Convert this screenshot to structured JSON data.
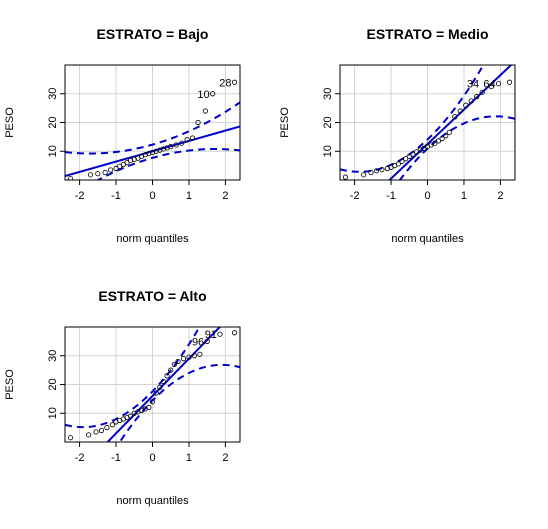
{
  "chart_data": [
    {
      "type": "scatter",
      "title": "ESTRATO = Bajo",
      "xlabel": "norm quantiles",
      "ylabel": "PESO",
      "xlim": [
        -2.4,
        2.4
      ],
      "ylim": [
        0,
        40
      ],
      "xticks": [
        -2,
        -1,
        0,
        1,
        2
      ],
      "yticks": [
        10,
        20,
        30
      ],
      "grid": true,
      "points": [
        {
          "x": -2.25,
          "y": 0.5
        },
        {
          "x": -1.7,
          "y": 1.8
        },
        {
          "x": -1.5,
          "y": 2.2
        },
        {
          "x": -1.3,
          "y": 2.6
        },
        {
          "x": -1.15,
          "y": 3.5
        },
        {
          "x": -1.0,
          "y": 4.0
        },
        {
          "x": -0.9,
          "y": 4.8
        },
        {
          "x": -0.8,
          "y": 5.4
        },
        {
          "x": -0.7,
          "y": 6.0
        },
        {
          "x": -0.6,
          "y": 6.8
        },
        {
          "x": -0.5,
          "y": 7.2
        },
        {
          "x": -0.4,
          "y": 7.6
        },
        {
          "x": -0.3,
          "y": 8.2
        },
        {
          "x": -0.2,
          "y": 8.8
        },
        {
          "x": -0.1,
          "y": 9.2
        },
        {
          "x": 0.0,
          "y": 9.6
        },
        {
          "x": 0.1,
          "y": 10.0
        },
        {
          "x": 0.2,
          "y": 10.4
        },
        {
          "x": 0.3,
          "y": 10.8
        },
        {
          "x": 0.4,
          "y": 11.2
        },
        {
          "x": 0.5,
          "y": 11.6
        },
        {
          "x": 0.65,
          "y": 12.2
        },
        {
          "x": 0.8,
          "y": 12.8
        },
        {
          "x": 0.95,
          "y": 14.0
        },
        {
          "x": 1.1,
          "y": 14.6
        },
        {
          "x": 1.25,
          "y": 20.0
        },
        {
          "x": 1.45,
          "y": 24.0
        },
        {
          "x": 1.65,
          "y": 30.0
        },
        {
          "x": 2.25,
          "y": 34.0
        }
      ],
      "point_labels": [
        {
          "x": 1.65,
          "y": 30.0,
          "text": "10"
        },
        {
          "x": 2.25,
          "y": 34.0,
          "text": "28"
        }
      ],
      "reference_line": {
        "intercept": 10.0,
        "slope": 3.6
      },
      "envelope": {
        "center": 10.0,
        "slope": 3.6,
        "base": 2.3,
        "spread": 1.05
      }
    },
    {
      "type": "scatter",
      "title": "ESTRATO = Medio",
      "xlabel": "norm quantiles",
      "ylabel": "PESO",
      "xlim": [
        -2.4,
        2.4
      ],
      "ylim": [
        0,
        40
      ],
      "xticks": [
        -2,
        -1,
        0,
        1,
        2
      ],
      "yticks": [
        10,
        20,
        30
      ],
      "grid": true,
      "points": [
        {
          "x": -2.25,
          "y": 1.0
        },
        {
          "x": -1.75,
          "y": 1.8
        },
        {
          "x": -1.55,
          "y": 2.6
        },
        {
          "x": -1.4,
          "y": 3.2
        },
        {
          "x": -1.25,
          "y": 3.6
        },
        {
          "x": -1.1,
          "y": 4.0
        },
        {
          "x": -1.0,
          "y": 4.4
        },
        {
          "x": -0.9,
          "y": 5.0
        },
        {
          "x": -0.8,
          "y": 5.6
        },
        {
          "x": -0.7,
          "y": 6.5
        },
        {
          "x": -0.6,
          "y": 7.4
        },
        {
          "x": -0.5,
          "y": 8.2
        },
        {
          "x": -0.4,
          "y": 9.0
        },
        {
          "x": -0.3,
          "y": 9.8
        },
        {
          "x": -0.2,
          "y": 10.4
        },
        {
          "x": -0.1,
          "y": 11.0
        },
        {
          "x": 0.0,
          "y": 11.6
        },
        {
          "x": 0.1,
          "y": 12.2
        },
        {
          "x": 0.2,
          "y": 12.8
        },
        {
          "x": 0.3,
          "y": 13.6
        },
        {
          "x": 0.4,
          "y": 14.4
        },
        {
          "x": 0.5,
          "y": 15.4
        },
        {
          "x": 0.6,
          "y": 16.6
        },
        {
          "x": 0.75,
          "y": 22.0
        },
        {
          "x": 0.9,
          "y": 24.0
        },
        {
          "x": 1.05,
          "y": 26.0
        },
        {
          "x": 1.2,
          "y": 27.5
        },
        {
          "x": 1.35,
          "y": 29.0
        },
        {
          "x": 1.5,
          "y": 30.5
        },
        {
          "x": 1.75,
          "y": 32.5
        },
        {
          "x": 1.95,
          "y": 33.5
        },
        {
          "x": 2.25,
          "y": 34.0
        }
      ],
      "point_labels": [
        {
          "x": 1.5,
          "y": 33.5,
          "text": "34"
        },
        {
          "x": 1.95,
          "y": 33.5,
          "text": "64"
        }
      ],
      "reference_line": {
        "intercept": 12.5,
        "slope": 12.0
      },
      "envelope": {
        "center": 12.5,
        "slope": 12.0,
        "base": 1.6,
        "spread": 3.2
      }
    },
    {
      "type": "scatter",
      "title": "ESTRATO = Alto",
      "xlabel": "norm quantiles",
      "ylabel": "PESO",
      "xlim": [
        -2.4,
        2.4
      ],
      "ylim": [
        0,
        40
      ],
      "xticks": [
        -2,
        -1,
        0,
        1,
        2
      ],
      "yticks": [
        10,
        20,
        30
      ],
      "grid": true,
      "points": [
        {
          "x": -2.25,
          "y": 1.5
        },
        {
          "x": -1.75,
          "y": 2.5
        },
        {
          "x": -1.55,
          "y": 3.5
        },
        {
          "x": -1.4,
          "y": 4.0
        },
        {
          "x": -1.25,
          "y": 5.0
        },
        {
          "x": -1.1,
          "y": 6.0
        },
        {
          "x": -1.0,
          "y": 7.0
        },
        {
          "x": -0.9,
          "y": 7.5
        },
        {
          "x": -0.8,
          "y": 8.0
        },
        {
          "x": -0.7,
          "y": 8.5
        },
        {
          "x": -0.6,
          "y": 9.0
        },
        {
          "x": -0.5,
          "y": 10.0
        },
        {
          "x": -0.4,
          "y": 10.5
        },
        {
          "x": -0.3,
          "y": 11.0
        },
        {
          "x": -0.2,
          "y": 11.5
        },
        {
          "x": -0.1,
          "y": 12.0
        },
        {
          "x": 0.0,
          "y": 14.0
        },
        {
          "x": 0.1,
          "y": 17.0
        },
        {
          "x": 0.2,
          "y": 19.0
        },
        {
          "x": 0.3,
          "y": 21.0
        },
        {
          "x": 0.4,
          "y": 23.0
        },
        {
          "x": 0.5,
          "y": 25.0
        },
        {
          "x": 0.6,
          "y": 27.0
        },
        {
          "x": 0.7,
          "y": 28.0
        },
        {
          "x": 0.85,
          "y": 29.0
        },
        {
          "x": 1.0,
          "y": 29.5
        },
        {
          "x": 1.15,
          "y": 30.0
        },
        {
          "x": 1.3,
          "y": 30.5
        },
        {
          "x": 1.5,
          "y": 35.0
        },
        {
          "x": 1.85,
          "y": 37.5
        },
        {
          "x": 2.25,
          "y": 38.0
        }
      ],
      "point_labels": [
        {
          "x": 1.5,
          "y": 35.0,
          "text": "96"
        },
        {
          "x": 1.85,
          "y": 37.5,
          "text": "91"
        }
      ],
      "reference_line": {
        "intercept": 16.0,
        "slope": 13.0
      },
      "envelope": {
        "center": 16.0,
        "slope": 13.0,
        "base": 1.6,
        "spread": 3.4
      }
    }
  ]
}
